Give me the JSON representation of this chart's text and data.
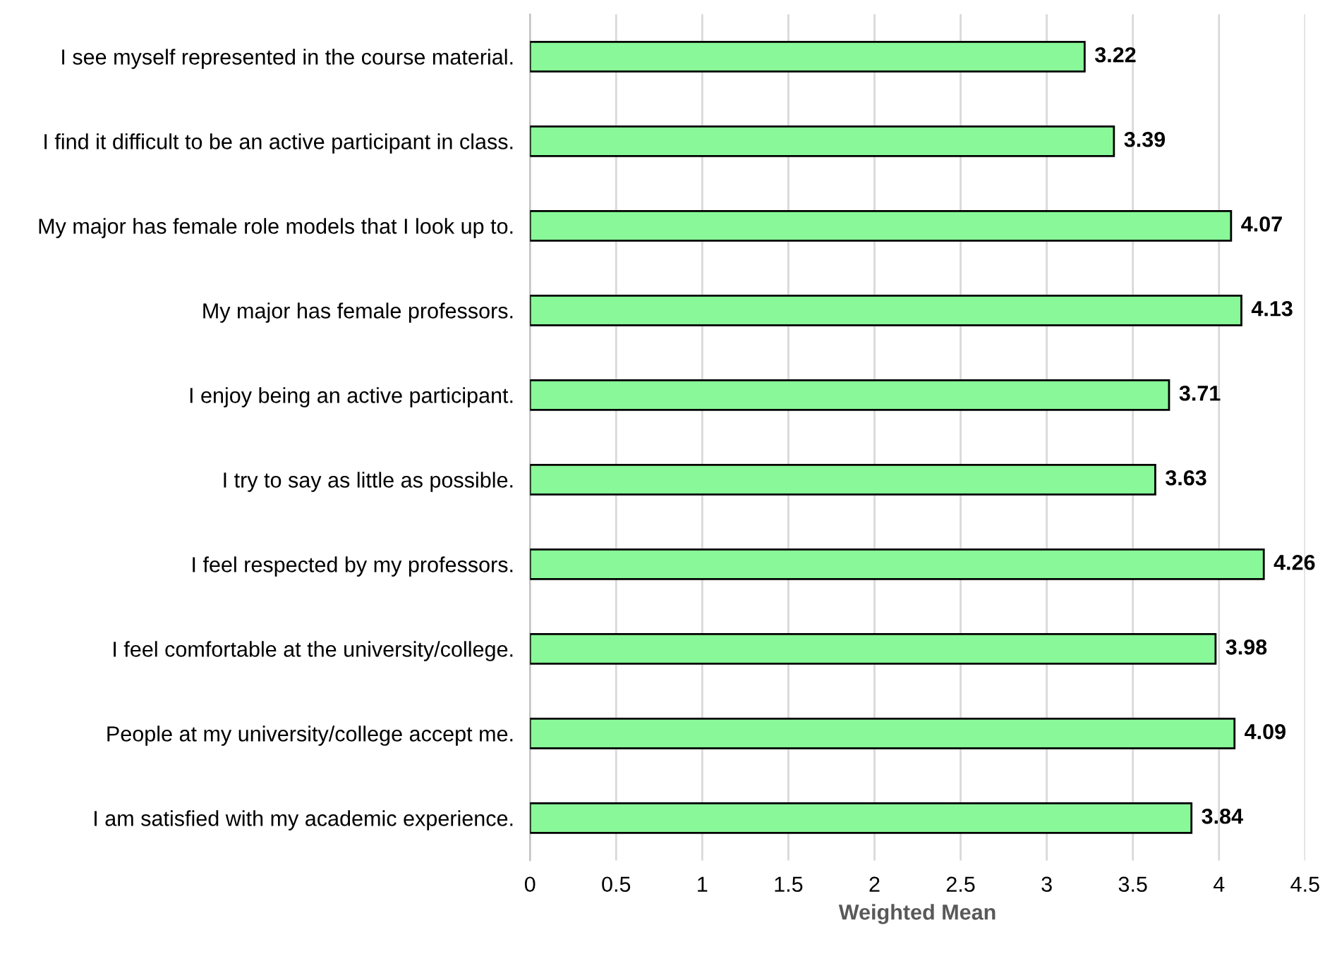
{
  "chart_data": {
    "type": "bar",
    "orientation": "horizontal",
    "xlabel": "Weighted Mean",
    "categories": [
      "I see myself represented in the course material.",
      "I find it difficult to be an active participant in class.",
      "My major has female role models that I look up to.",
      "My major has female professors.",
      "I enjoy being an active participant.",
      "I try to say as little as possible.",
      "I feel respected by my professors.",
      "I feel comfortable at the university/college.",
      "People at my university/college accept me.",
      "I am satisfied with my academic experience."
    ],
    "values": [
      3.22,
      3.39,
      4.07,
      4.13,
      3.71,
      3.63,
      4.26,
      3.98,
      4.09,
      3.84
    ],
    "color": "#88f898",
    "xlim": [
      0,
      4.5
    ],
    "xticks": [
      0,
      0.5,
      1,
      1.5,
      2,
      2.5,
      3,
      3.5,
      4,
      4.5
    ],
    "grid": "x",
    "data_labels": true
  }
}
